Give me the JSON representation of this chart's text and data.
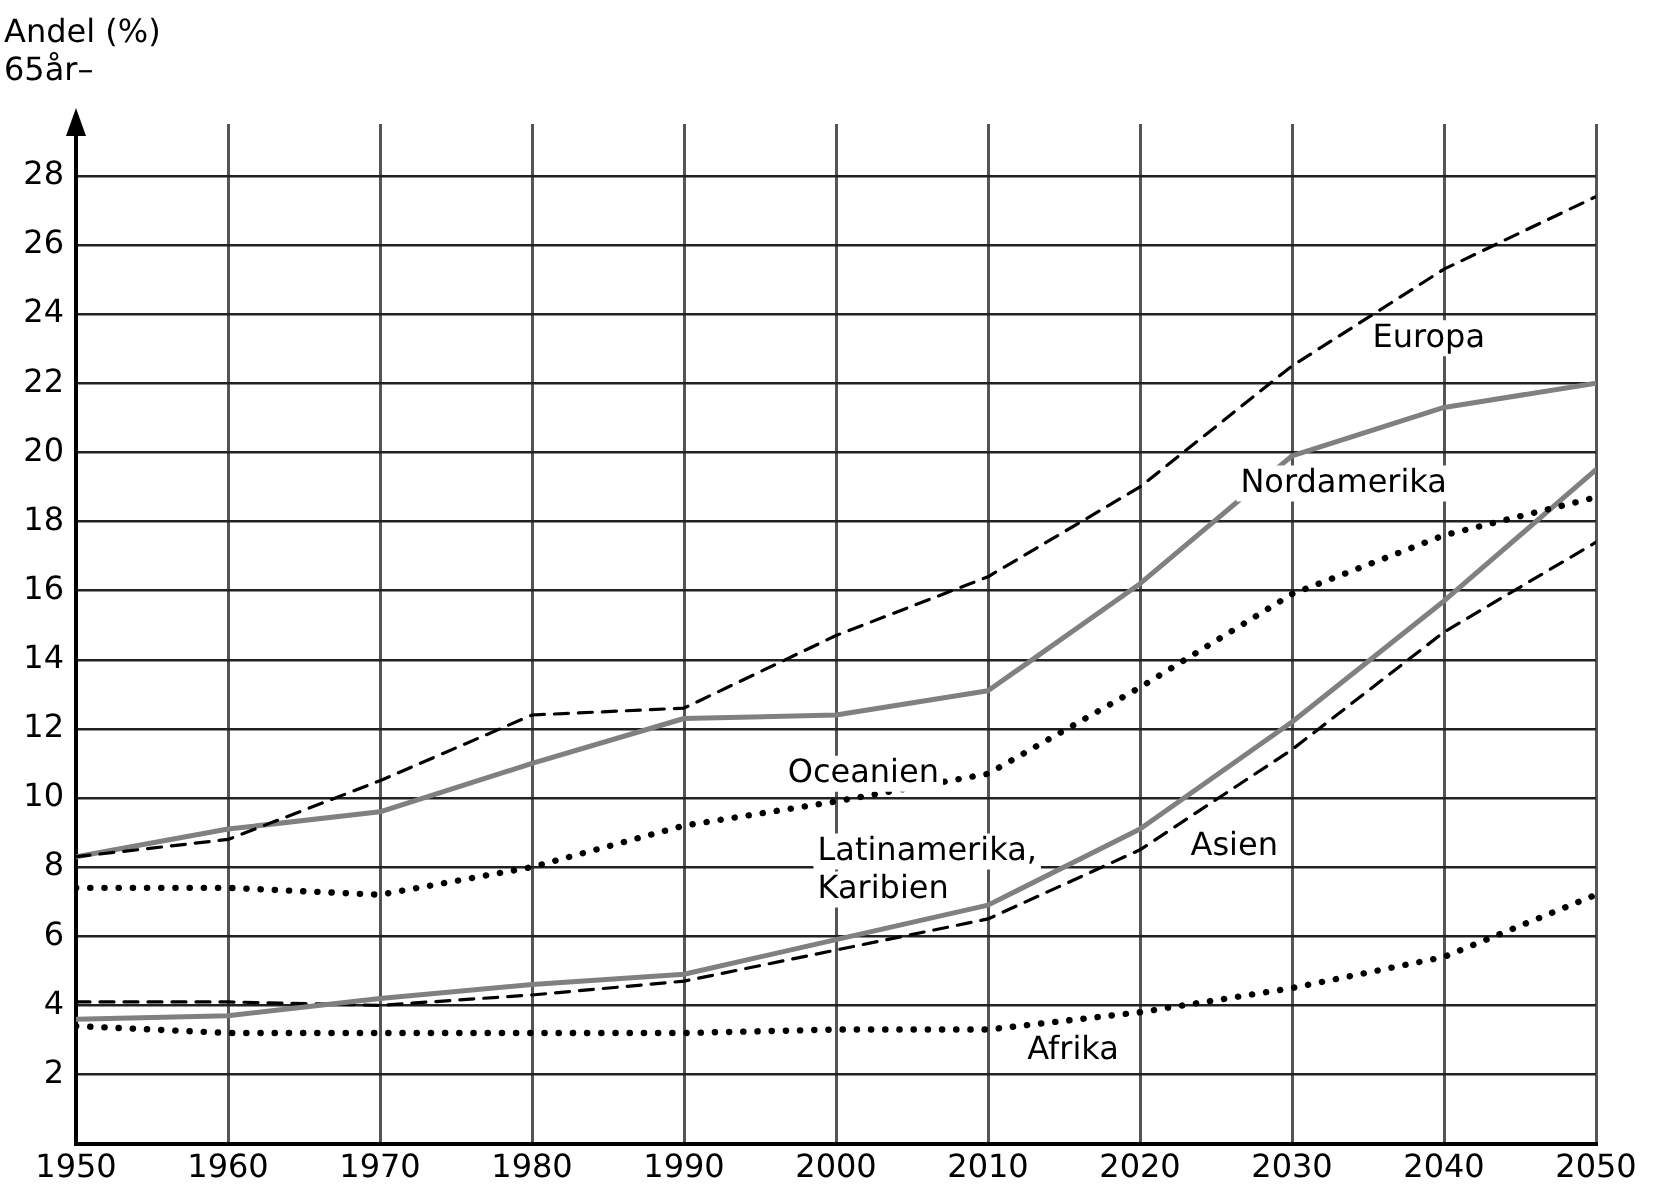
{
  "chart_data": {
    "type": "line",
    "ylabel": "Andel (%) 65år–",
    "x": [
      1950,
      1960,
      1970,
      1980,
      1990,
      2000,
      2010,
      2020,
      2030,
      2040,
      2050
    ],
    "xlim": [
      1950,
      2050
    ],
    "xticks": [
      1950,
      1960,
      1970,
      1980,
      1990,
      2000,
      2010,
      2020,
      2030,
      2040,
      2050
    ],
    "ylim": [
      0,
      29.5
    ],
    "yticks": [
      2,
      4,
      6,
      8,
      10,
      12,
      14,
      16,
      18,
      20,
      22,
      24,
      26,
      28
    ],
    "grid": true,
    "legend": false,
    "marker": "none",
    "series": [
      {
        "name": "Europa",
        "color": "#000000",
        "line_style": "dashed",
        "values": [
          8.3,
          8.8,
          10.5,
          12.4,
          12.6,
          14.7,
          16.4,
          19.0,
          22.5,
          25.3,
          27.4
        ]
      },
      {
        "name": "Nordamerika",
        "color": "#808080",
        "line_style": "solid",
        "values": [
          8.3,
          9.1,
          9.6,
          11.0,
          12.3,
          12.4,
          13.1,
          16.2,
          19.9,
          21.3,
          22.0
        ]
      },
      {
        "name": "Oceanien",
        "color": "#000000",
        "line_style": "dotted",
        "values": [
          7.4,
          7.4,
          7.2,
          8.0,
          9.2,
          9.9,
          10.7,
          13.2,
          15.9,
          17.6,
          18.7
        ]
      },
      {
        "name": "Latinamerika, Karibien",
        "color": "#808080",
        "line_style": "solid",
        "values": [
          3.6,
          3.7,
          4.2,
          4.6,
          4.9,
          5.9,
          6.9,
          9.1,
          12.2,
          15.7,
          19.5
        ]
      },
      {
        "name": "Asien",
        "color": "#000000",
        "line_style": "dashed",
        "values": [
          4.1,
          4.1,
          4.0,
          4.3,
          4.7,
          5.6,
          6.5,
          8.5,
          11.4,
          14.8,
          17.4
        ]
      },
      {
        "name": "Afrika",
        "color": "#000000",
        "line_style": "dotted",
        "values": [
          3.4,
          3.2,
          3.2,
          3.2,
          3.2,
          3.3,
          3.3,
          3.8,
          4.5,
          5.4,
          7.2
        ]
      }
    ]
  }
}
